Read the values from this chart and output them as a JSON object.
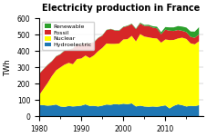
{
  "title": "Electricity production in France",
  "ylabel": "TWh",
  "xlim": [
    1980,
    2019
  ],
  "ylim": [
    0,
    600
  ],
  "yticks": [
    0,
    100,
    200,
    300,
    400,
    500,
    600
  ],
  "years": [
    1980,
    1981,
    1982,
    1983,
    1984,
    1985,
    1986,
    1987,
    1988,
    1989,
    1990,
    1991,
    1992,
    1993,
    1994,
    1995,
    1996,
    1997,
    1998,
    1999,
    2000,
    2001,
    2002,
    2003,
    2004,
    2005,
    2006,
    2007,
    2008,
    2009,
    2010,
    2011,
    2012,
    2013,
    2014,
    2015,
    2016,
    2017,
    2018
  ],
  "hydroelectric": [
    70,
    68,
    65,
    67,
    72,
    60,
    57,
    63,
    60,
    62,
    65,
    73,
    63,
    64,
    60,
    65,
    72,
    70,
    75,
    72,
    77,
    74,
    79,
    60,
    65,
    60,
    58,
    60,
    58,
    62,
    67,
    48,
    64,
    73,
    68,
    60,
    64,
    62,
    68
  ],
  "nuclear": [
    60,
    100,
    140,
    180,
    210,
    240,
    260,
    265,
    260,
    290,
    290,
    300,
    295,
    310,
    340,
    355,
    375,
    375,
    370,
    375,
    395,
    400,
    415,
    400,
    440,
    430,
    427,
    420,
    420,
    390,
    405,
    420,
    405,
    405,
    415,
    415,
    384,
    380,
    393
  ],
  "fossil": [
    130,
    120,
    110,
    90,
    85,
    80,
    85,
    80,
    95,
    90,
    85,
    75,
    90,
    80,
    80,
    75,
    82,
    90,
    82,
    78,
    75,
    80,
    72,
    75,
    65,
    65,
    70,
    65,
    62,
    52,
    60,
    58,
    55,
    52,
    42,
    42,
    40,
    40,
    42
  ],
  "renewable": [
    2,
    2,
    2,
    2,
    2,
    2,
    2,
    2,
    2,
    2,
    2,
    2,
    2,
    2,
    2,
    2,
    2,
    2,
    2,
    3,
    3,
    3,
    3,
    4,
    5,
    6,
    7,
    8,
    10,
    12,
    16,
    20,
    22,
    24,
    26,
    28,
    33,
    38,
    44
  ],
  "colors": {
    "hydroelectric": "#1f77b4",
    "nuclear": "#ffff00",
    "fossil": "#d62728",
    "renewable": "#2ca02c"
  },
  "legend_order": [
    "renewable",
    "fossil",
    "nuclear",
    "hydroelectric"
  ],
  "legend_labels": [
    "Renewable",
    "Fossil",
    "Nuclear",
    "Hydroelectric"
  ]
}
